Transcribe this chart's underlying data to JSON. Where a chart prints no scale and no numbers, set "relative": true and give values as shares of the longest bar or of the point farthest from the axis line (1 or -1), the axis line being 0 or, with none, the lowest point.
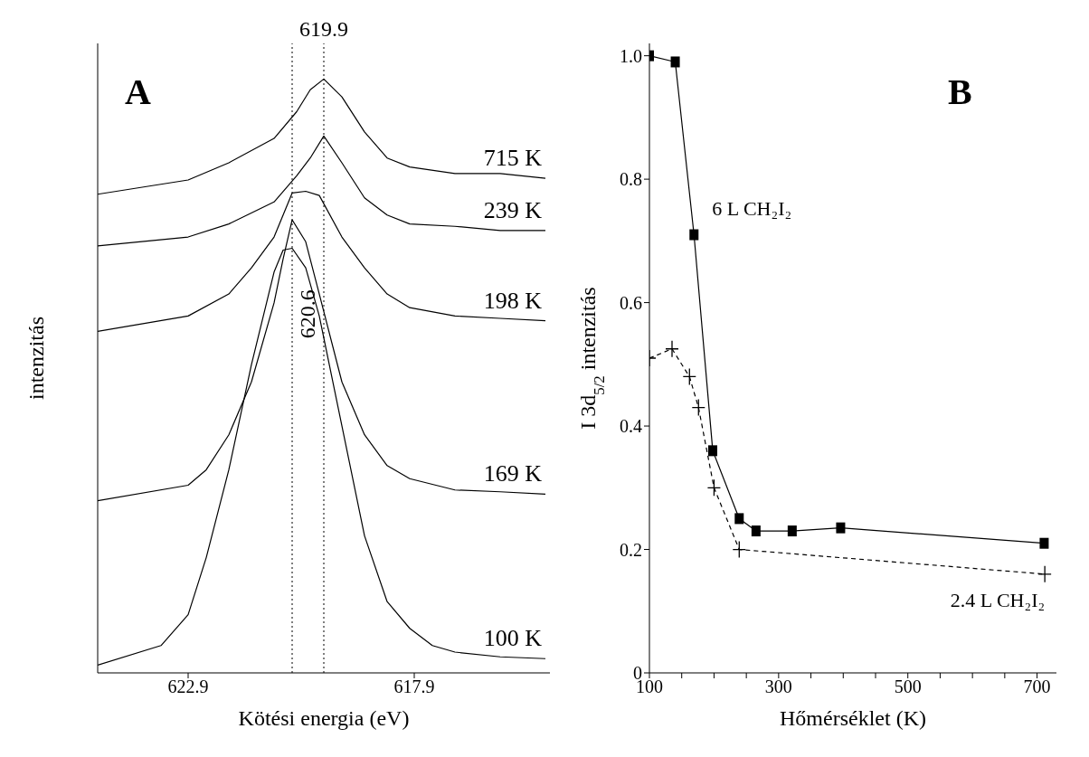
{
  "chart_data": [
    {
      "type": "line",
      "title": "A",
      "xlabel": "Kötési energia (eV)",
      "ylabel": "intenzitás",
      "relative": true,
      "tick_labels": "x",
      "xlim": [
        624.9,
        614.9
      ],
      "xticks": [
        622.9,
        617.9
      ],
      "series": [
        {
          "name": "715 K",
          "color": "#000000",
          "x": [
            624.9,
            622.9,
            622,
            621,
            620.5,
            620.2,
            619.9,
            619.5,
            619,
            618.5,
            618,
            617,
            616,
            615
          ],
          "values": [
            0.806,
            0.83,
            0.859,
            0.9,
            0.945,
            0.982,
            1.0,
            0.97,
            0.911,
            0.867,
            0.852,
            0.841,
            0.841,
            0.833
          ]
        },
        {
          "name": "239 K",
          "color": "#000000",
          "x": [
            624.9,
            622.9,
            622,
            621,
            620.5,
            620.2,
            619.9,
            619.5,
            619,
            618.5,
            618,
            617,
            616,
            615
          ],
          "values": [
            0.719,
            0.734,
            0.756,
            0.793,
            0.837,
            0.867,
            0.904,
            0.859,
            0.8,
            0.771,
            0.756,
            0.752,
            0.745,
            0.745
          ]
        },
        {
          "name": "198 K",
          "color": "#000000",
          "x": [
            624.9,
            622.9,
            622,
            621.5,
            621,
            620.6,
            620.3,
            620,
            619.5,
            619,
            618.5,
            618,
            617,
            616,
            615
          ],
          "values": [
            0.575,
            0.601,
            0.638,
            0.682,
            0.734,
            0.808,
            0.811,
            0.804,
            0.734,
            0.682,
            0.638,
            0.615,
            0.601,
            0.597,
            0.593
          ]
        },
        {
          "name": "169 K",
          "color": "#000000",
          "x": [
            624.9,
            622.9,
            622.5,
            622,
            621.5,
            621,
            620.8,
            620.6,
            620.3,
            620,
            619.5,
            619,
            618.5,
            618,
            617,
            616,
            615
          ],
          "values": [
            0.29,
            0.316,
            0.342,
            0.401,
            0.49,
            0.623,
            0.697,
            0.763,
            0.726,
            0.638,
            0.49,
            0.401,
            0.349,
            0.327,
            0.308,
            0.305,
            0.301
          ]
        },
        {
          "name": "100 K",
          "color": "#000000",
          "x": [
            624.9,
            623.5,
            622.9,
            622.5,
            622,
            621.5,
            621,
            620.8,
            620.6,
            620.3,
            620,
            619.5,
            619,
            618.5,
            618,
            617.5,
            617,
            616,
            615
          ],
          "values": [
            0.013,
            0.046,
            0.098,
            0.194,
            0.342,
            0.519,
            0.675,
            0.712,
            0.715,
            0.682,
            0.601,
            0.416,
            0.231,
            0.12,
            0.075,
            0.046,
            0.035,
            0.027,
            0.024
          ]
        }
      ],
      "ref_lines": [
        {
          "axis": "x",
          "value": 619.9,
          "label": "619.9",
          "line_style": "dotted",
          "color": "#000000"
        },
        {
          "axis": "x",
          "value": 620.6,
          "label": "620.6",
          "line_style": "dotted",
          "color": "#000000"
        }
      ]
    },
    {
      "type": "line",
      "title": "B",
      "xlabel": "Hőmérséklet (K)",
      "ylabel": "I 3d$_{5/2}$ intenzitás",
      "xlim": [
        100,
        730
      ],
      "xticks": [
        100,
        {
          "value": 150,
          "label": null
        },
        {
          "value": 200,
          "label": null
        },
        {
          "value": 250,
          "label": null
        },
        300,
        {
          "value": 350,
          "label": null
        },
        {
          "value": 400,
          "label": null
        },
        {
          "value": 450,
          "label": null
        },
        500,
        {
          "value": 550,
          "label": null
        },
        {
          "value": 600,
          "label": null
        },
        {
          "value": 650,
          "label": null
        },
        700
      ],
      "ylim": [
        0,
        1.02
      ],
      "yticks": [
        0,
        0.2,
        0.4,
        0.6,
        0.8,
        {
          "value": 1,
          "label": "1.0"
        }
      ],
      "series": [
        {
          "name": "6 L CH₂I₂",
          "color": "#000000",
          "marker": "square",
          "line_style": "solid",
          "x": [
            100,
            140,
            169,
            198,
            239,
            265,
            321,
            396,
            711
          ],
          "values": [
            1.0,
            0.99,
            0.71,
            0.36,
            0.25,
            0.23,
            0.23,
            0.235,
            0.21
          ]
        },
        {
          "name": "2.4 L CH₂I₂",
          "color": "#000000",
          "marker": "cross",
          "line_style": "dashed",
          "x": [
            100,
            135,
            162,
            176,
            200,
            239,
            712
          ],
          "values": [
            0.51,
            0.525,
            0.48,
            0.43,
            0.3,
            0.2,
            0.16
          ]
        }
      ]
    }
  ]
}
